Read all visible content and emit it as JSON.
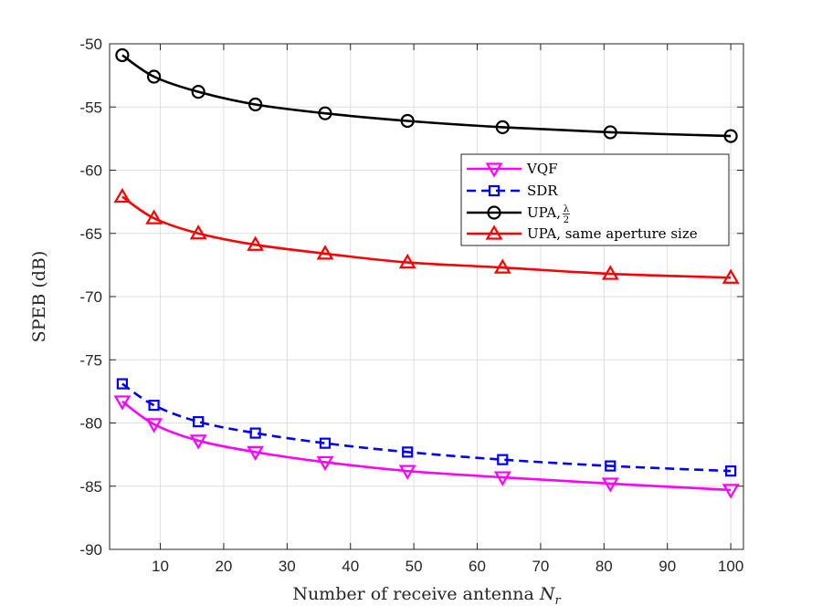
{
  "chart_data": {
    "type": "line",
    "title": "",
    "xlabel": "Number of receive antenna",
    "xlabel_symbol": "N",
    "xlabel_subscript": "r",
    "ylabel": "SPEB (dB)",
    "xlim": [
      2,
      102
    ],
    "ylim": [
      -90,
      -50
    ],
    "xticks": [
      10,
      20,
      30,
      40,
      50,
      60,
      70,
      80,
      90,
      100
    ],
    "yticks": [
      -50,
      -55,
      -60,
      -65,
      -70,
      -75,
      -80,
      -85,
      -90
    ],
    "grid": true,
    "legend_position": "upper-right-inside",
    "x": [
      4,
      9,
      16,
      25,
      36,
      49,
      64,
      81,
      100
    ],
    "series": [
      {
        "name": "VQF",
        "color": "#ff00ff",
        "line_style": "solid",
        "marker": "triangle-down",
        "values": [
          -78.3,
          -80.1,
          -81.4,
          -82.3,
          -83.1,
          -83.8,
          -84.3,
          -84.8,
          -85.3
        ]
      },
      {
        "name": "SDR",
        "color": "#0000ff",
        "line_style": "dashed",
        "marker": "square",
        "values": [
          -76.9,
          -78.6,
          -79.9,
          -80.8,
          -81.6,
          -82.3,
          -82.9,
          -83.4,
          -83.8
        ]
      },
      {
        "name": "UPA, ",
        "name_fraction": {
          "numerator": "λ",
          "denominator": "2"
        },
        "color": "#000000",
        "line_style": "solid",
        "marker": "circle",
        "values": [
          -50.9,
          -52.6,
          -53.8,
          -54.8,
          -55.5,
          -56.1,
          -56.6,
          -57.0,
          -57.3
        ]
      },
      {
        "name": "UPA, same aperture size",
        "color": "#ff0000",
        "line_style": "solid",
        "marker": "triangle-up",
        "values": [
          -62.1,
          -63.8,
          -65.0,
          -65.9,
          -66.6,
          -67.3,
          -67.7,
          -68.2,
          -68.5
        ]
      }
    ]
  }
}
